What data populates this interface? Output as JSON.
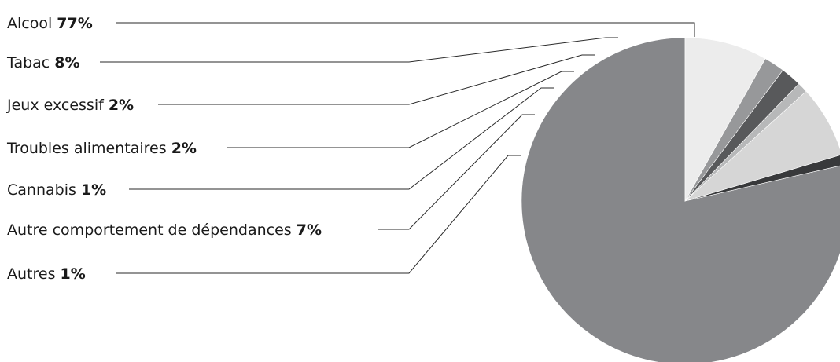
{
  "chart_data": {
    "type": "pie",
    "title": "",
    "legend_placement": "left",
    "start": "top (12 o'clock), counter-clockwise",
    "slices": [
      {
        "label": "Alcool",
        "value": 77,
        "value_label": "77%",
        "color": "#86878a"
      },
      {
        "label": "Autres",
        "value": 1,
        "value_label": "1%",
        "color": "#38393b"
      },
      {
        "label": "Autre comportement de dépendances",
        "value": 7,
        "value_label": "7%",
        "color": "#d6d6d6"
      },
      {
        "label": "Cannabis",
        "value": 1,
        "value_label": "1%",
        "color": "#b7b8b9"
      },
      {
        "label": "Troubles alimentaires",
        "value": 2,
        "value_label": "2%",
        "color": "#58595b"
      },
      {
        "label": "Jeux excessif",
        "value": 2,
        "value_label": "2%",
        "color": "#97989a"
      },
      {
        "label": "Tabac",
        "value": 8,
        "value_label": "8%",
        "color": "#ececec"
      }
    ],
    "legend_order": [
      "Alcool",
      "Tabac",
      "Jeux excessif",
      "Troubles alimentaires",
      "Cannabis",
      "Autre comportement de dépendances",
      "Autres"
    ]
  }
}
